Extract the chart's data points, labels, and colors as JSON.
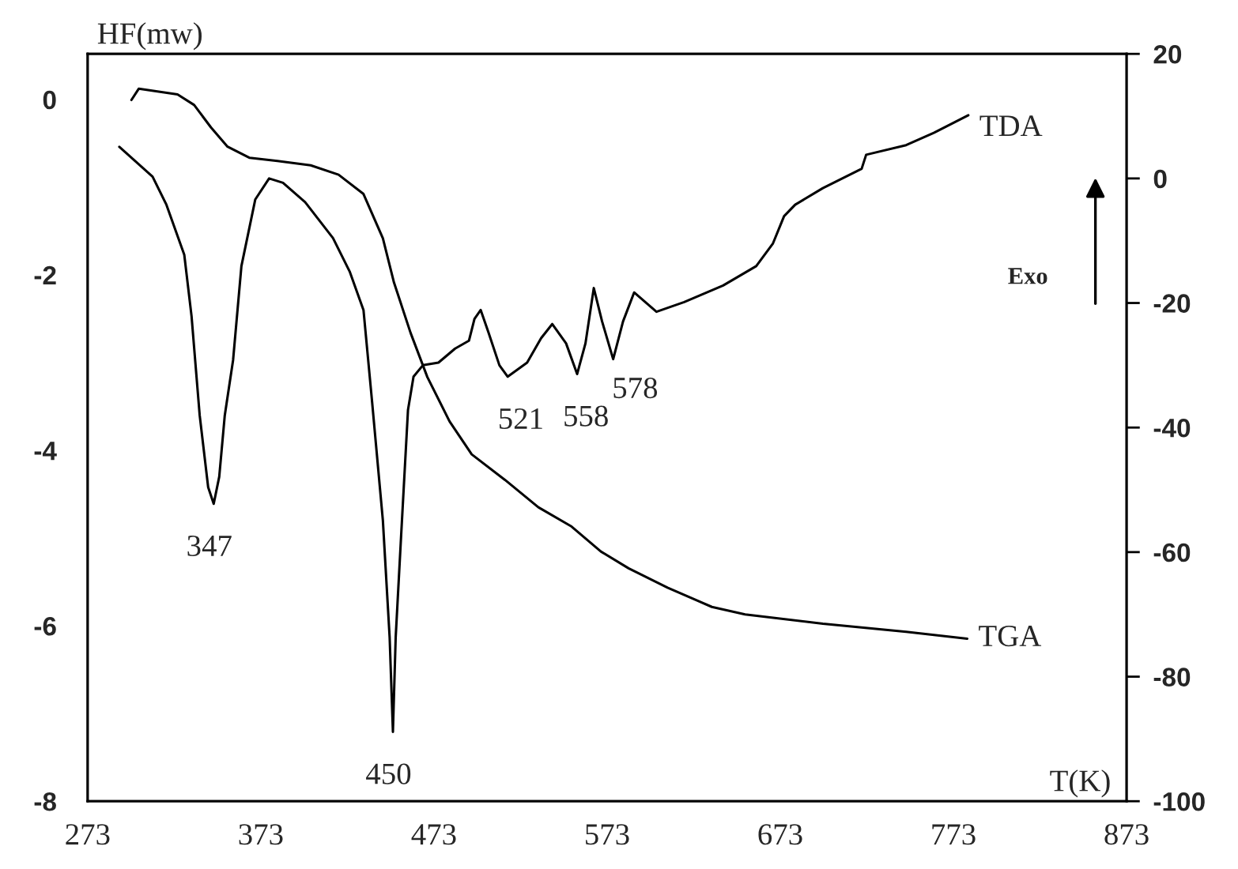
{
  "chart_data": {
    "type": "line",
    "xlabel": "T(K)",
    "ylabel": "HF(mw)",
    "xlim": [
      273,
      873
    ],
    "xticks": [
      273,
      373,
      473,
      573,
      673,
      773,
      873
    ],
    "ylim": [
      -8,
      0.52
    ],
    "yticks": [
      -8,
      -6,
      -4,
      -2,
      0
    ],
    "y2lim": [
      -100,
      20
    ],
    "y2ticks": [
      -100,
      -80,
      -60,
      -40,
      -20,
      0,
      20
    ],
    "grid": false,
    "marker": "none",
    "line_style": "solid",
    "series": [
      {
        "name": "TDA",
        "color": "#000000",
        "axis": "y",
        "x": [
          291.3,
          310.5,
          318.5,
          328.8,
          333,
          337.7,
          342.6,
          345.8,
          349,
          352.2,
          357,
          361.8,
          369.8,
          377.8,
          385.8,
          398.6,
          414.7,
          424.3,
          432.3,
          437.1,
          443.5,
          447.4,
          449.3,
          450.9,
          453.8,
          458,
          461.2,
          466.6,
          475.6,
          485.2,
          493.2,
          496.4,
          500,
          504.4,
          510.8,
          515.6,
          526.8,
          534.9,
          541.3,
          549.3,
          555.7,
          560.5,
          565.3,
          570.1,
          576.5,
          582.2,
          588.6,
          601.5,
          617.5,
          640,
          659.1,
          668.8,
          675.2,
          681.6,
          697.6,
          720,
          722.6,
          745.7,
          761.7,
          781.6
        ],
        "values": [
          -0.54,
          -0.88,
          -1.2,
          -1.77,
          -2.47,
          -3.6,
          -4.42,
          -4.61,
          -4.3,
          -3.6,
          -2.97,
          -1.9,
          -1.14,
          -0.9,
          -0.95,
          -1.17,
          -1.58,
          -1.96,
          -2.4,
          -3.41,
          -4.8,
          -6.13,
          -7.21,
          -6.13,
          -5.06,
          -3.54,
          -3.16,
          -3.03,
          -3.0,
          -2.84,
          -2.75,
          -2.5,
          -2.4,
          -2.65,
          -3.03,
          -3.16,
          -3.0,
          -2.72,
          -2.56,
          -2.78,
          -3.13,
          -2.78,
          -2.15,
          -2.53,
          -2.96,
          -2.53,
          -2.2,
          -2.42,
          -2.31,
          -2.12,
          -1.9,
          -1.64,
          -1.33,
          -1.2,
          -1.01,
          -0.79,
          -0.63,
          -0.52,
          -0.38,
          -0.18
        ]
      },
      {
        "name": "TGA",
        "color": "#000000",
        "axis": "y2",
        "x": [
          298.3,
          302.5,
          324.9,
          334.5,
          344.2,
          353.8,
          366.6,
          382.6,
          401.8,
          417.9,
          432.3,
          443.5,
          449.9,
          459.5,
          469.2,
          482,
          494.8,
          514,
          533.3,
          552.5,
          569.4,
          585.4,
          607.9,
          633.5,
          652.7,
          697.6,
          745.7,
          781
        ],
        "values": [
          12.6,
          14.4,
          13.5,
          11.8,
          8.2,
          5.1,
          3.3,
          2.8,
          2.1,
          0.6,
          -2.5,
          -9.6,
          -16.7,
          -24.8,
          -31.9,
          -39.0,
          -44.3,
          -48.4,
          -52.8,
          -55.9,
          -59.9,
          -62.6,
          -65.7,
          -68.8,
          -70.0,
          -71.5,
          -72.8,
          -73.9
        ]
      }
    ],
    "annotations": [
      {
        "text": "347",
        "x": 345.8,
        "y": -4.61
      },
      {
        "text": "450",
        "x": 449.3,
        "y": -7.21
      },
      {
        "text": "521",
        "x": 515.6,
        "y": -3.16
      },
      {
        "text": "558",
        "x": 555.7,
        "y": -3.13
      },
      {
        "text": "578",
        "x": 576.5,
        "y": -2.96
      },
      "Exo"
    ]
  }
}
